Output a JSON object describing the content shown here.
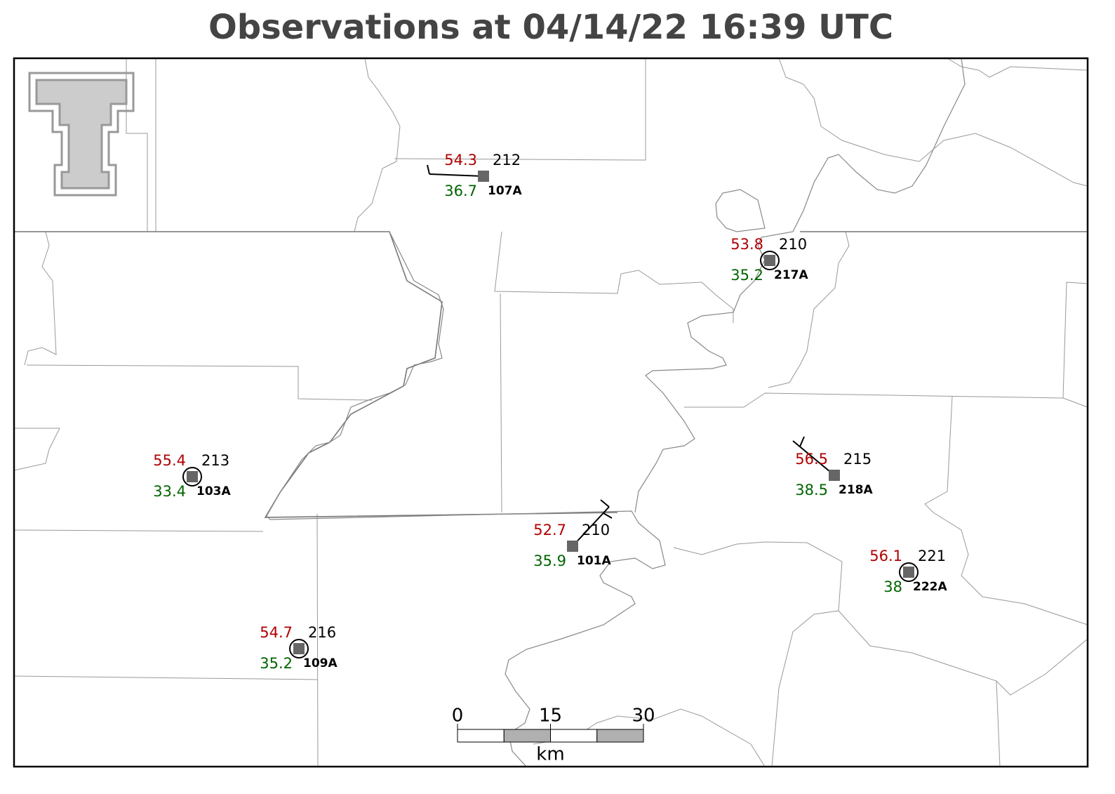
{
  "title": "Observations at 04/14/22 16:39 UTC",
  "stations": [
    {
      "id": "107A",
      "temperature": 54.3,
      "dewpoint": 36.7,
      "code": "212"
    },
    {
      "id": "217A",
      "temperature": 53.8,
      "dewpoint": 35.2,
      "code": "210"
    },
    {
      "id": "103A",
      "temperature": 55.4,
      "dewpoint": 33.4,
      "code": "213"
    },
    {
      "id": "218A",
      "temperature": 56.5,
      "dewpoint": 38.5,
      "code": "215"
    },
    {
      "id": "101A",
      "temperature": 52.7,
      "dewpoint": 35.9,
      "code": "210"
    },
    {
      "id": "222A",
      "temperature": 56.1,
      "dewpoint": 38.0,
      "code": "221"
    },
    {
      "id": "109A",
      "temperature": 54.7,
      "dewpoint": 35.2,
      "code": "216"
    }
  ],
  "scale_bar": {
    "ticks": [
      0,
      15,
      30
    ],
    "unit": "km"
  }
}
